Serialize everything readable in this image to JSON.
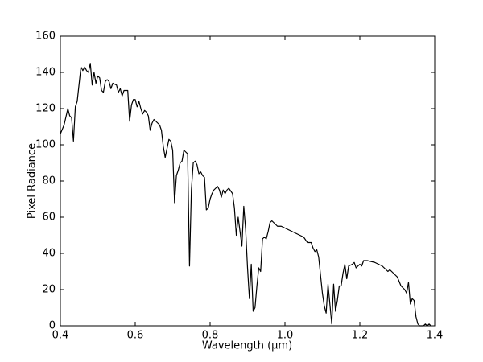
{
  "chart_data": {
    "type": "line",
    "xlabel": "Wavelength (μm)",
    "ylabel": "Pixel Radiance",
    "color": "#000000",
    "xlim": [
      0.4,
      1.4
    ],
    "ylim": [
      0,
      160
    ],
    "xticks": [
      0.4,
      0.6,
      0.8,
      {
        "value": 1,
        "label": "1.0"
      },
      1.2,
      1.4
    ],
    "yticks": [
      0,
      20,
      40,
      60,
      80,
      100,
      120,
      140,
      160
    ],
    "x": [
      0.4,
      0.41,
      0.42,
      0.425,
      0.43,
      0.435,
      0.44,
      0.445,
      0.455,
      0.46,
      0.465,
      0.47,
      0.475,
      0.48,
      0.485,
      0.49,
      0.495,
      0.5,
      0.505,
      0.51,
      0.515,
      0.52,
      0.525,
      0.53,
      0.535,
      0.54,
      0.55,
      0.555,
      0.56,
      0.565,
      0.57,
      0.58,
      0.585,
      0.59,
      0.595,
      0.6,
      0.605,
      0.61,
      0.615,
      0.62,
      0.625,
      0.63,
      0.635,
      0.64,
      0.645,
      0.65,
      0.66,
      0.665,
      0.67,
      0.675,
      0.68,
      0.685,
      0.69,
      0.695,
      0.7,
      0.705,
      0.71,
      0.715,
      0.72,
      0.725,
      0.73,
      0.74,
      0.745,
      0.75,
      0.755,
      0.76,
      0.765,
      0.77,
      0.775,
      0.78,
      0.785,
      0.79,
      0.795,
      0.8,
      0.805,
      0.81,
      0.82,
      0.825,
      0.83,
      0.835,
      0.84,
      0.845,
      0.85,
      0.86,
      0.865,
      0.87,
      0.875,
      0.88,
      0.885,
      0.89,
      0.895,
      0.9,
      0.905,
      0.91,
      0.915,
      0.92,
      0.925,
      0.93,
      0.935,
      0.94,
      0.945,
      0.95,
      0.955,
      0.96,
      0.965,
      0.97,
      0.975,
      0.98,
      0.99,
      1.0,
      1.02,
      1.04,
      1.05,
      1.06,
      1.07,
      1.075,
      1.08,
      1.085,
      1.09,
      1.1,
      1.105,
      1.11,
      1.115,
      1.12,
      1.125,
      1.13,
      1.135,
      1.14,
      1.145,
      1.15,
      1.155,
      1.16,
      1.165,
      1.17,
      1.18,
      1.185,
      1.19,
      1.2,
      1.205,
      1.21,
      1.22,
      1.24,
      1.25,
      1.26,
      1.27,
      1.275,
      1.28,
      1.29,
      1.3,
      1.31,
      1.32,
      1.325,
      1.33,
      1.335,
      1.34,
      1.345,
      1.35,
      1.355,
      1.36,
      1.37,
      1.375,
      1.38,
      1.385,
      1.39
    ],
    "values": [
      106,
      111,
      120,
      116,
      115,
      102,
      121,
      124,
      143,
      141,
      143,
      141,
      140,
      145,
      133,
      140,
      134,
      138,
      137,
      130,
      129,
      135,
      136,
      135,
      131,
      134,
      133,
      129,
      131,
      127,
      130,
      130,
      113,
      122,
      125,
      125,
      121,
      124,
      120,
      117,
      119,
      118,
      116,
      108,
      112,
      114,
      112,
      111,
      108,
      99,
      93,
      98,
      103,
      102,
      97,
      68,
      83,
      86,
      90,
      91,
      97,
      95,
      33,
      75,
      90,
      91,
      89,
      84,
      85,
      83,
      82,
      64,
      65,
      70,
      73,
      75,
      77,
      75,
      71,
      75,
      73,
      75,
      76,
      73,
      65,
      50,
      60,
      52,
      44,
      66,
      53,
      32,
      15,
      34,
      8,
      10,
      22,
      32,
      30,
      48,
      49,
      48,
      52,
      57,
      58,
      57,
      56,
      55,
      55,
      54,
      52,
      50,
      49,
      46,
      46,
      43,
      41,
      42,
      38,
      18,
      11,
      7,
      23,
      12,
      1,
      23,
      8,
      14,
      22,
      22,
      29,
      34,
      26,
      33,
      34,
      35,
      32,
      34,
      33,
      36,
      36,
      35,
      34,
      33,
      31,
      30,
      31,
      29,
      27,
      22,
      20,
      18,
      24,
      12,
      15,
      14,
      5,
      1,
      0,
      0,
      1,
      0,
      1,
      0
    ]
  }
}
